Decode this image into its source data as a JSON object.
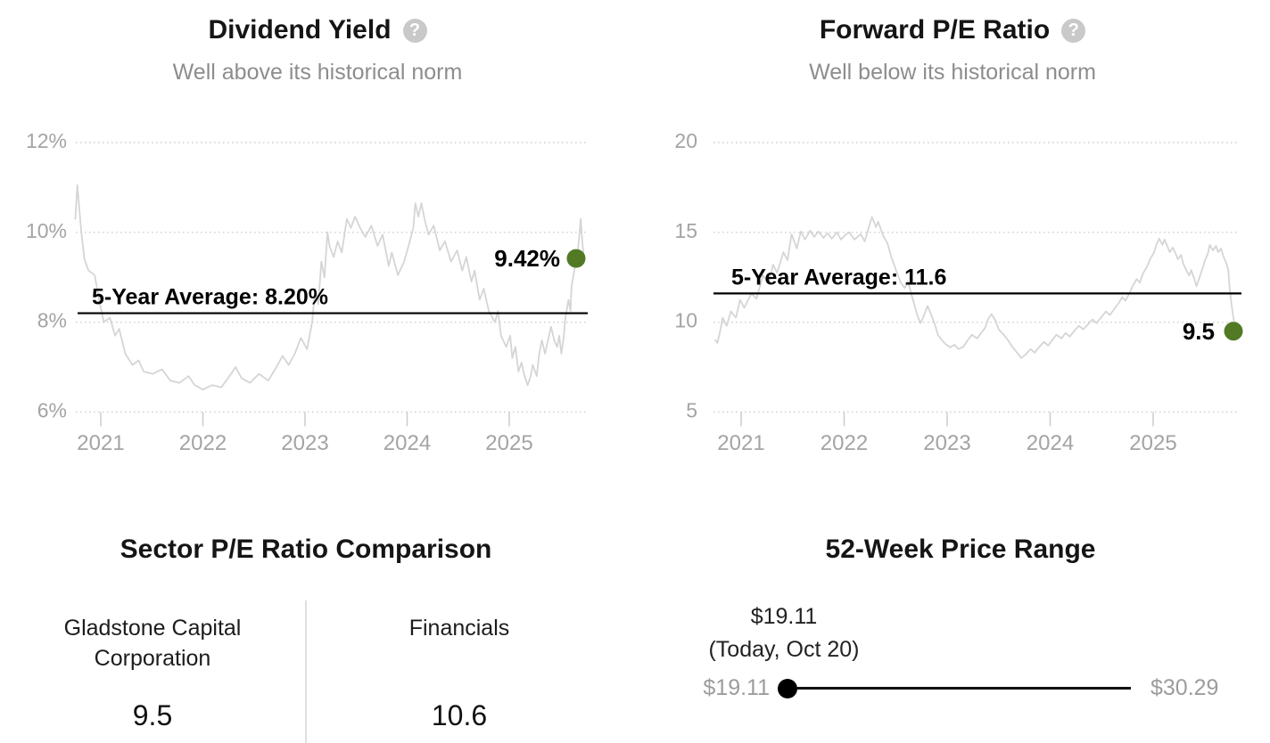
{
  "colors": {
    "accent_green": "#527a25",
    "series_gray": "#d5d5d5",
    "grid": "#cfcfcf",
    "axis_text": "#a4a4a4",
    "tick_mark": "#cccccc",
    "muted_text": "#8d8d8d",
    "range_gray": "#9c9c9c",
    "line_black": "#000000"
  },
  "chart_data": [
    {
      "type": "line",
      "id": "dividend_yield",
      "title": "Dividend Yield",
      "help_icon": "?",
      "subtitle": "Well above its historical norm",
      "ylim": [
        6,
        12
      ],
      "x_range": [
        2020.75,
        2025.73
      ],
      "grid": true,
      "y_ticks": [
        {
          "v": 12,
          "label": "12%"
        },
        {
          "v": 10,
          "label": "10%"
        },
        {
          "v": 8,
          "label": "8%"
        },
        {
          "v": 6,
          "label": "6%"
        }
      ],
      "x_ticks": [
        {
          "v": 2021,
          "label": "2021"
        },
        {
          "v": 2022,
          "label": "2022"
        },
        {
          "v": 2023,
          "label": "2023"
        },
        {
          "v": 2024,
          "label": "2024"
        },
        {
          "v": 2025,
          "label": "2025"
        }
      ],
      "average": {
        "value": 8.2,
        "label": "5-Year Average: 8.20%"
      },
      "current": {
        "value": 9.42,
        "label": "9.42%"
      },
      "series": [
        [
          2020.75,
          10.3
        ],
        [
          2020.77,
          11.05
        ],
        [
          2020.81,
          10.0
        ],
        [
          2020.84,
          9.4
        ],
        [
          2020.88,
          9.15
        ],
        [
          2020.94,
          9.05
        ],
        [
          2020.98,
          8.55
        ],
        [
          2021.03,
          8.0
        ],
        [
          2021.09,
          8.1
        ],
        [
          2021.14,
          7.7
        ],
        [
          2021.18,
          7.85
        ],
        [
          2021.24,
          7.3
        ],
        [
          2021.31,
          7.05
        ],
        [
          2021.37,
          7.15
        ],
        [
          2021.42,
          6.9
        ],
        [
          2021.51,
          6.85
        ],
        [
          2021.6,
          6.95
        ],
        [
          2021.68,
          6.7
        ],
        [
          2021.77,
          6.65
        ],
        [
          2021.86,
          6.8
        ],
        [
          2021.92,
          6.6
        ],
        [
          2022.0,
          6.5
        ],
        [
          2022.09,
          6.6
        ],
        [
          2022.18,
          6.55
        ],
        [
          2022.26,
          6.8
        ],
        [
          2022.32,
          7.0
        ],
        [
          2022.38,
          6.75
        ],
        [
          2022.46,
          6.65
        ],
        [
          2022.55,
          6.85
        ],
        [
          2022.64,
          6.7
        ],
        [
          2022.72,
          7.0
        ],
        [
          2022.78,
          7.25
        ],
        [
          2022.84,
          7.05
        ],
        [
          2022.9,
          7.3
        ],
        [
          2022.96,
          7.65
        ],
        [
          2023.02,
          7.4
        ],
        [
          2023.07,
          8.0
        ],
        [
          2023.1,
          8.75
        ],
        [
          2023.13,
          8.4
        ],
        [
          2023.16,
          9.35
        ],
        [
          2023.19,
          9.0
        ],
        [
          2023.22,
          10.0
        ],
        [
          2023.24,
          9.7
        ],
        [
          2023.28,
          9.45
        ],
        [
          2023.32,
          9.8
        ],
        [
          2023.36,
          9.55
        ],
        [
          2023.41,
          10.3
        ],
        [
          2023.45,
          10.1
        ],
        [
          2023.49,
          10.35
        ],
        [
          2023.54,
          10.1
        ],
        [
          2023.59,
          9.9
        ],
        [
          2023.65,
          10.15
        ],
        [
          2023.71,
          9.7
        ],
        [
          2023.76,
          9.95
        ],
        [
          2023.82,
          9.25
        ],
        [
          2023.85,
          9.55
        ],
        [
          2023.91,
          9.05
        ],
        [
          2023.97,
          9.35
        ],
        [
          2024.02,
          9.75
        ],
        [
          2024.06,
          10.1
        ],
        [
          2024.08,
          10.65
        ],
        [
          2024.11,
          10.35
        ],
        [
          2024.14,
          10.65
        ],
        [
          2024.17,
          10.3
        ],
        [
          2024.21,
          9.95
        ],
        [
          2024.26,
          10.15
        ],
        [
          2024.32,
          9.6
        ],
        [
          2024.37,
          9.8
        ],
        [
          2024.43,
          9.35
        ],
        [
          2024.49,
          9.6
        ],
        [
          2024.54,
          9.15
        ],
        [
          2024.58,
          9.45
        ],
        [
          2024.63,
          8.9
        ],
        [
          2024.66,
          9.15
        ],
        [
          2024.71,
          8.5
        ],
        [
          2024.75,
          8.75
        ],
        [
          2024.8,
          8.25
        ],
        [
          2024.86,
          8.0
        ],
        [
          2024.89,
          8.25
        ],
        [
          2024.92,
          7.7
        ],
        [
          2024.97,
          7.45
        ],
        [
          2025.01,
          7.7
        ],
        [
          2025.03,
          7.2
        ],
        [
          2025.06,
          7.45
        ],
        [
          2025.09,
          6.9
        ],
        [
          2025.12,
          7.1
        ],
        [
          2025.15,
          6.8
        ],
        [
          2025.18,
          6.6
        ],
        [
          2025.21,
          6.8
        ],
        [
          2025.23,
          7.05
        ],
        [
          2025.27,
          6.8
        ],
        [
          2025.29,
          7.25
        ],
        [
          2025.32,
          7.6
        ],
        [
          2025.35,
          7.3
        ],
        [
          2025.38,
          7.6
        ],
        [
          2025.41,
          7.9
        ],
        [
          2025.44,
          7.6
        ],
        [
          2025.47,
          7.45
        ],
        [
          2025.49,
          7.7
        ],
        [
          2025.51,
          7.3
        ],
        [
          2025.53,
          7.6
        ],
        [
          2025.55,
          8.1
        ],
        [
          2025.58,
          8.5
        ],
        [
          2025.6,
          8.25
        ],
        [
          2025.61,
          8.8
        ],
        [
          2025.63,
          9.05
        ],
        [
          2025.65,
          9.3
        ],
        [
          2025.67,
          9.55
        ],
        [
          2025.68,
          9.8
        ],
        [
          2025.7,
          10.3
        ],
        [
          2025.71,
          9.95
        ],
        [
          2025.73,
          9.42
        ]
      ]
    },
    {
      "type": "line",
      "id": "forward_pe",
      "title": "Forward P/E Ratio",
      "help_icon": "?",
      "subtitle": "Well below its historical norm",
      "ylim": [
        5,
        20
      ],
      "x_range": [
        2020.75,
        2025.8
      ],
      "grid": true,
      "y_ticks": [
        {
          "v": 20,
          "label": "20"
        },
        {
          "v": 15,
          "label": "15"
        },
        {
          "v": 10,
          "label": "10"
        },
        {
          "v": 5,
          "label": "5"
        }
      ],
      "x_ticks": [
        {
          "v": 2021,
          "label": "2021"
        },
        {
          "v": 2022,
          "label": "2022"
        },
        {
          "v": 2023,
          "label": "2023"
        },
        {
          "v": 2024,
          "label": "2024"
        },
        {
          "v": 2025,
          "label": "2025"
        }
      ],
      "average": {
        "value": 11.6,
        "label": "5-Year Average: 11.6"
      },
      "current": {
        "value": 9.5,
        "label": "9.5"
      },
      "series": [
        [
          2020.75,
          9.0
        ],
        [
          2020.77,
          8.85
        ],
        [
          2020.8,
          9.6
        ],
        [
          2020.82,
          10.25
        ],
        [
          2020.86,
          9.8
        ],
        [
          2020.9,
          10.6
        ],
        [
          2020.95,
          10.25
        ],
        [
          2020.99,
          11.25
        ],
        [
          2021.03,
          10.8
        ],
        [
          2021.1,
          11.6
        ],
        [
          2021.15,
          11.3
        ],
        [
          2021.21,
          12.6
        ],
        [
          2021.27,
          12.15
        ],
        [
          2021.31,
          13.2
        ],
        [
          2021.35,
          12.75
        ],
        [
          2021.41,
          13.9
        ],
        [
          2021.45,
          13.45
        ],
        [
          2021.49,
          14.9
        ],
        [
          2021.54,
          14.1
        ],
        [
          2021.58,
          15.05
        ],
        [
          2021.62,
          14.6
        ],
        [
          2021.67,
          15.1
        ],
        [
          2021.71,
          14.75
        ],
        [
          2021.75,
          15.05
        ],
        [
          2021.8,
          14.7
        ],
        [
          2021.84,
          14.95
        ],
        [
          2021.88,
          14.65
        ],
        [
          2021.93,
          15.0
        ],
        [
          2021.97,
          14.6
        ],
        [
          2022.01,
          14.85
        ],
        [
          2022.05,
          15.0
        ],
        [
          2022.1,
          14.6
        ],
        [
          2022.16,
          14.9
        ],
        [
          2022.2,
          14.5
        ],
        [
          2022.25,
          15.5
        ],
        [
          2022.27,
          15.85
        ],
        [
          2022.31,
          15.3
        ],
        [
          2022.33,
          15.6
        ],
        [
          2022.38,
          14.8
        ],
        [
          2022.42,
          14.4
        ],
        [
          2022.46,
          13.6
        ],
        [
          2022.51,
          12.8
        ],
        [
          2022.55,
          12.2
        ],
        [
          2022.59,
          11.9
        ],
        [
          2022.62,
          12.3
        ],
        [
          2022.65,
          11.6
        ],
        [
          2022.71,
          10.4
        ],
        [
          2022.74,
          9.95
        ],
        [
          2022.77,
          10.3
        ],
        [
          2022.81,
          10.9
        ],
        [
          2022.84,
          10.5
        ],
        [
          2022.88,
          9.9
        ],
        [
          2022.91,
          9.3
        ],
        [
          2022.95,
          9.0
        ],
        [
          2022.98,
          8.8
        ],
        [
          2023.03,
          8.6
        ],
        [
          2023.07,
          8.75
        ],
        [
          2023.11,
          8.5
        ],
        [
          2023.16,
          8.65
        ],
        [
          2023.2,
          9.0
        ],
        [
          2023.24,
          9.3
        ],
        [
          2023.29,
          9.1
        ],
        [
          2023.33,
          9.4
        ],
        [
          2023.37,
          9.7
        ],
        [
          2023.4,
          10.2
        ],
        [
          2023.43,
          10.45
        ],
        [
          2023.47,
          10.1
        ],
        [
          2023.5,
          9.6
        ],
        [
          2023.55,
          9.3
        ],
        [
          2023.59,
          9.0
        ],
        [
          2023.63,
          8.65
        ],
        [
          2023.68,
          8.3
        ],
        [
          2023.72,
          8.0
        ],
        [
          2023.76,
          8.2
        ],
        [
          2023.81,
          8.5
        ],
        [
          2023.85,
          8.3
        ],
        [
          2023.89,
          8.6
        ],
        [
          2023.94,
          8.9
        ],
        [
          2023.98,
          8.7
        ],
        [
          2024.02,
          9.0
        ],
        [
          2024.06,
          9.3
        ],
        [
          2024.11,
          9.1
        ],
        [
          2024.15,
          9.4
        ],
        [
          2024.19,
          9.2
        ],
        [
          2024.24,
          9.55
        ],
        [
          2024.28,
          9.8
        ],
        [
          2024.32,
          9.6
        ],
        [
          2024.37,
          9.9
        ],
        [
          2024.41,
          10.15
        ],
        [
          2024.45,
          9.95
        ],
        [
          2024.5,
          10.3
        ],
        [
          2024.54,
          10.6
        ],
        [
          2024.58,
          10.4
        ],
        [
          2024.63,
          10.8
        ],
        [
          2024.67,
          11.1
        ],
        [
          2024.7,
          11.4
        ],
        [
          2024.73,
          11.2
        ],
        [
          2024.77,
          11.6
        ],
        [
          2024.8,
          12.0
        ],
        [
          2024.84,
          12.4
        ],
        [
          2024.87,
          12.2
        ],
        [
          2024.9,
          12.7
        ],
        [
          2024.94,
          13.1
        ],
        [
          2024.97,
          13.5
        ],
        [
          2025.01,
          13.9
        ],
        [
          2025.03,
          14.3
        ],
        [
          2025.06,
          14.65
        ],
        [
          2025.09,
          14.3
        ],
        [
          2025.11,
          14.6
        ],
        [
          2025.14,
          14.2
        ],
        [
          2025.16,
          13.9
        ],
        [
          2025.19,
          14.15
        ],
        [
          2025.22,
          13.8
        ],
        [
          2025.24,
          13.5
        ],
        [
          2025.27,
          13.75
        ],
        [
          2025.29,
          13.3
        ],
        [
          2025.32,
          12.9
        ],
        [
          2025.35,
          12.6
        ],
        [
          2025.37,
          12.9
        ],
        [
          2025.4,
          12.4
        ],
        [
          2025.42,
          12.0
        ],
        [
          2025.45,
          12.5
        ],
        [
          2025.48,
          13.0
        ],
        [
          2025.5,
          13.4
        ],
        [
          2025.53,
          13.8
        ],
        [
          2025.55,
          14.3
        ],
        [
          2025.58,
          14.0
        ],
        [
          2025.61,
          14.25
        ],
        [
          2025.63,
          13.9
        ],
        [
          2025.66,
          14.1
        ],
        [
          2025.68,
          13.7
        ],
        [
          2025.71,
          13.3
        ],
        [
          2025.73,
          12.9
        ],
        [
          2025.74,
          12.0
        ],
        [
          2025.76,
          11.0
        ],
        [
          2025.78,
          10.2
        ],
        [
          2025.8,
          9.5
        ]
      ]
    },
    {
      "type": "table",
      "id": "sector_pe_comparison",
      "title": "Sector P/E Ratio Comparison",
      "columns": [
        {
          "label": "Gladstone Capital Corporation",
          "value": "9.5"
        },
        {
          "label": "Financials",
          "value": "10.6"
        }
      ]
    },
    {
      "type": "range",
      "id": "price_range_52w",
      "title": "52-Week Price Range",
      "today_price": "$19.11",
      "today_note": "(Today, Oct 20)",
      "min": 19.11,
      "max": 30.29,
      "current": 19.11,
      "min_label": "$19.11",
      "max_label": "$30.29"
    }
  ]
}
